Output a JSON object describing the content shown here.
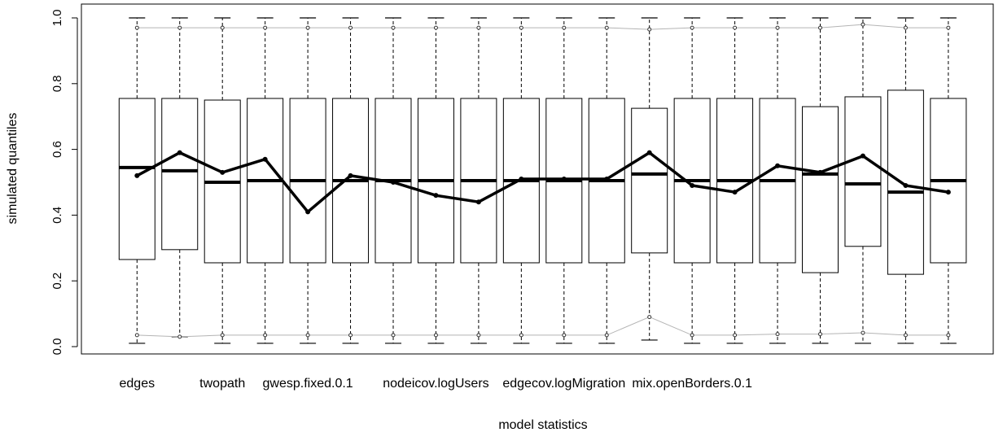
{
  "chart_data": {
    "type": "boxplot",
    "title": "",
    "xlabel": "model statistics",
    "ylabel": "simulated quantiles",
    "ylim": [
      0,
      1
    ],
    "y_ticks": [
      "0.0",
      "0.2",
      "0.4",
      "0.6",
      "0.8",
      "1.0"
    ],
    "x_tick_labels": [
      "edges",
      "twopath",
      "gwesp.fixed.0.1",
      "nodeicov.logUsers",
      "edgecov.logMigration",
      "mix.openBorders.0.1"
    ],
    "x_tick_positions": [
      1,
      3,
      5,
      8,
      11,
      14
    ],
    "boxes": [
      {
        "whisker_low": 0.01,
        "q1": 0.265,
        "median": 0.545,
        "q3": 0.755,
        "whisker_high": 1.0
      },
      {
        "whisker_low": 0.03,
        "q1": 0.295,
        "median": 0.535,
        "q3": 0.755,
        "whisker_high": 1.0
      },
      {
        "whisker_low": 0.01,
        "q1": 0.255,
        "median": 0.5,
        "q3": 0.75,
        "whisker_high": 1.0
      },
      {
        "whisker_low": 0.01,
        "q1": 0.255,
        "median": 0.505,
        "q3": 0.755,
        "whisker_high": 1.0
      },
      {
        "whisker_low": 0.01,
        "q1": 0.255,
        "median": 0.505,
        "q3": 0.755,
        "whisker_high": 1.0
      },
      {
        "whisker_low": 0.01,
        "q1": 0.255,
        "median": 0.505,
        "q3": 0.755,
        "whisker_high": 1.0
      },
      {
        "whisker_low": 0.01,
        "q1": 0.255,
        "median": 0.505,
        "q3": 0.755,
        "whisker_high": 1.0
      },
      {
        "whisker_low": 0.01,
        "q1": 0.255,
        "median": 0.505,
        "q3": 0.755,
        "whisker_high": 1.0
      },
      {
        "whisker_low": 0.01,
        "q1": 0.255,
        "median": 0.505,
        "q3": 0.755,
        "whisker_high": 1.0
      },
      {
        "whisker_low": 0.01,
        "q1": 0.255,
        "median": 0.505,
        "q3": 0.755,
        "whisker_high": 1.0
      },
      {
        "whisker_low": 0.01,
        "q1": 0.255,
        "median": 0.505,
        "q3": 0.755,
        "whisker_high": 1.0
      },
      {
        "whisker_low": 0.01,
        "q1": 0.255,
        "median": 0.505,
        "q3": 0.755,
        "whisker_high": 1.0
      },
      {
        "whisker_low": 0.02,
        "q1": 0.285,
        "median": 0.525,
        "q3": 0.725,
        "whisker_high": 1.0
      },
      {
        "whisker_low": 0.01,
        "q1": 0.255,
        "median": 0.505,
        "q3": 0.755,
        "whisker_high": 1.0
      },
      {
        "whisker_low": 0.01,
        "q1": 0.255,
        "median": 0.505,
        "q3": 0.755,
        "whisker_high": 1.0
      },
      {
        "whisker_low": 0.01,
        "q1": 0.255,
        "median": 0.505,
        "q3": 0.755,
        "whisker_high": 1.0
      },
      {
        "whisker_low": 0.01,
        "q1": 0.225,
        "median": 0.525,
        "q3": 0.73,
        "whisker_high": 1.0
      },
      {
        "whisker_low": 0.01,
        "q1": 0.305,
        "median": 0.495,
        "q3": 0.76,
        "whisker_high": 1.0
      },
      {
        "whisker_low": 0.01,
        "q1": 0.22,
        "median": 0.47,
        "q3": 0.78,
        "whisker_high": 1.0
      },
      {
        "whisker_low": 0.01,
        "q1": 0.255,
        "median": 0.505,
        "q3": 0.755,
        "whisker_high": 1.0
      }
    ],
    "observed_line": {
      "color": "#000000",
      "values": [
        0.52,
        0.59,
        0.53,
        0.57,
        0.41,
        0.52,
        0.5,
        0.46,
        0.44,
        0.51,
        0.51,
        0.51,
        0.59,
        0.49,
        0.47,
        0.55,
        0.53,
        0.58,
        0.49,
        0.47
      ]
    },
    "upper_range_line": {
      "color": "#b4b4b4",
      "values": [
        0.97,
        0.97,
        0.97,
        0.97,
        0.97,
        0.97,
        0.97,
        0.97,
        0.97,
        0.97,
        0.97,
        0.97,
        0.965,
        0.97,
        0.97,
        0.97,
        0.97,
        0.98,
        0.97,
        0.97
      ]
    },
    "lower_range_line": {
      "color": "#b4b4b4",
      "values": [
        0.035,
        0.03,
        0.035,
        0.035,
        0.035,
        0.035,
        0.035,
        0.035,
        0.035,
        0.035,
        0.035,
        0.035,
        0.09,
        0.035,
        0.035,
        0.038,
        0.038,
        0.042,
        0.035,
        0.035
      ]
    },
    "grid": false,
    "legend": "none"
  }
}
